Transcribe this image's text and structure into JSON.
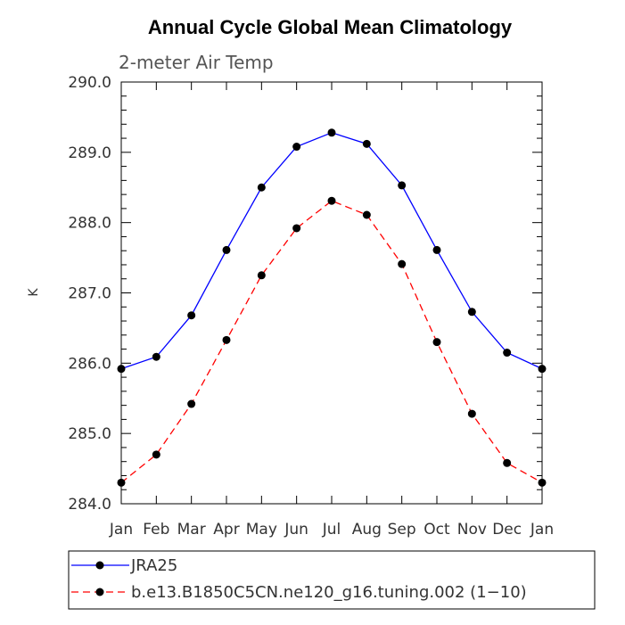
{
  "chart_data": {
    "type": "line",
    "title": "Annual Cycle Global Mean Climatology",
    "subtitle": "2-meter Air Temp",
    "xlabel": "",
    "ylabel": "K",
    "categories": [
      "Jan",
      "Feb",
      "Mar",
      "Apr",
      "May",
      "Jun",
      "Jul",
      "Aug",
      "Sep",
      "Oct",
      "Nov",
      "Dec",
      "Jan"
    ],
    "ylim": [
      284.0,
      290.0
    ],
    "yticks": [
      "284.0",
      "285.0",
      "286.0",
      "287.0",
      "288.0",
      "289.0",
      "290.0"
    ],
    "grid": false,
    "legend_position": "bottom",
    "series": [
      {
        "name": "JRA25",
        "color": "#0000ff",
        "dash": "solid",
        "marker": "filled-circle",
        "values": [
          285.92,
          286.09,
          286.68,
          287.61,
          288.5,
          289.08,
          289.28,
          289.12,
          288.53,
          287.61,
          286.73,
          286.15,
          285.92
        ]
      },
      {
        "name": "b.e13.B1850C5CN.ne120_g16.tuning.002 (1−10)",
        "color": "#ff0000",
        "dash": "dashed",
        "marker": "filled-circle",
        "values": [
          284.3,
          284.7,
          285.42,
          286.33,
          287.25,
          287.92,
          288.31,
          288.11,
          287.41,
          286.3,
          285.28,
          284.58,
          284.3
        ]
      }
    ]
  }
}
